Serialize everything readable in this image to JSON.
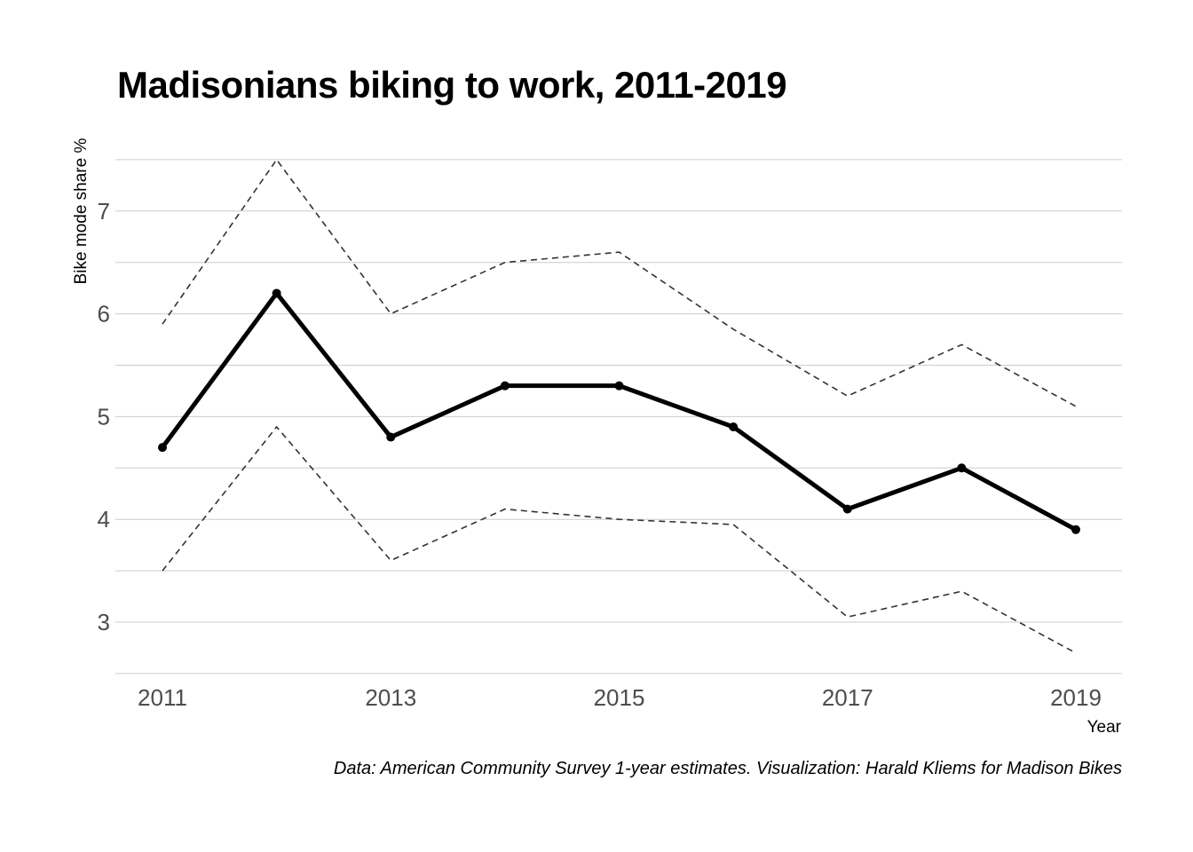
{
  "chart_data": {
    "type": "line",
    "title": "Madisonians biking to work, 2011-2019",
    "caption": "Data: American Community Survey 1-year estimates. Visualization: Harald Kliems for Madison Bikes",
    "xlabel": "Year",
    "ylabel": "Bike mode share %",
    "x": [
      2011,
      2012,
      2013,
      2014,
      2015,
      2016,
      2017,
      2018,
      2019
    ],
    "x_ticks": [
      "2011",
      "2013",
      "2015",
      "2017",
      "2019"
    ],
    "y_ticks": [
      "3",
      "4",
      "5",
      "6",
      "7"
    ],
    "xlim": [
      2010.8,
      2019.2
    ],
    "ylim": [
      2.5,
      7.65
    ],
    "grid": true,
    "series": [
      {
        "values": [
          4.7,
          6.2,
          4.8,
          5.3,
          5.3,
          4.9,
          4.1,
          4.5,
          3.9
        ],
        "style": "solid",
        "markers": true,
        "color": "#000000"
      },
      {
        "values": [
          5.9,
          7.5,
          6.0,
          6.5,
          6.6,
          5.85,
          5.2,
          5.7,
          5.1
        ],
        "style": "dashed",
        "color": "#333333"
      },
      {
        "values": [
          3.5,
          4.9,
          3.6,
          4.1,
          4.0,
          3.95,
          3.05,
          3.3,
          2.7
        ],
        "style": "dashed",
        "color": "#333333"
      }
    ]
  }
}
